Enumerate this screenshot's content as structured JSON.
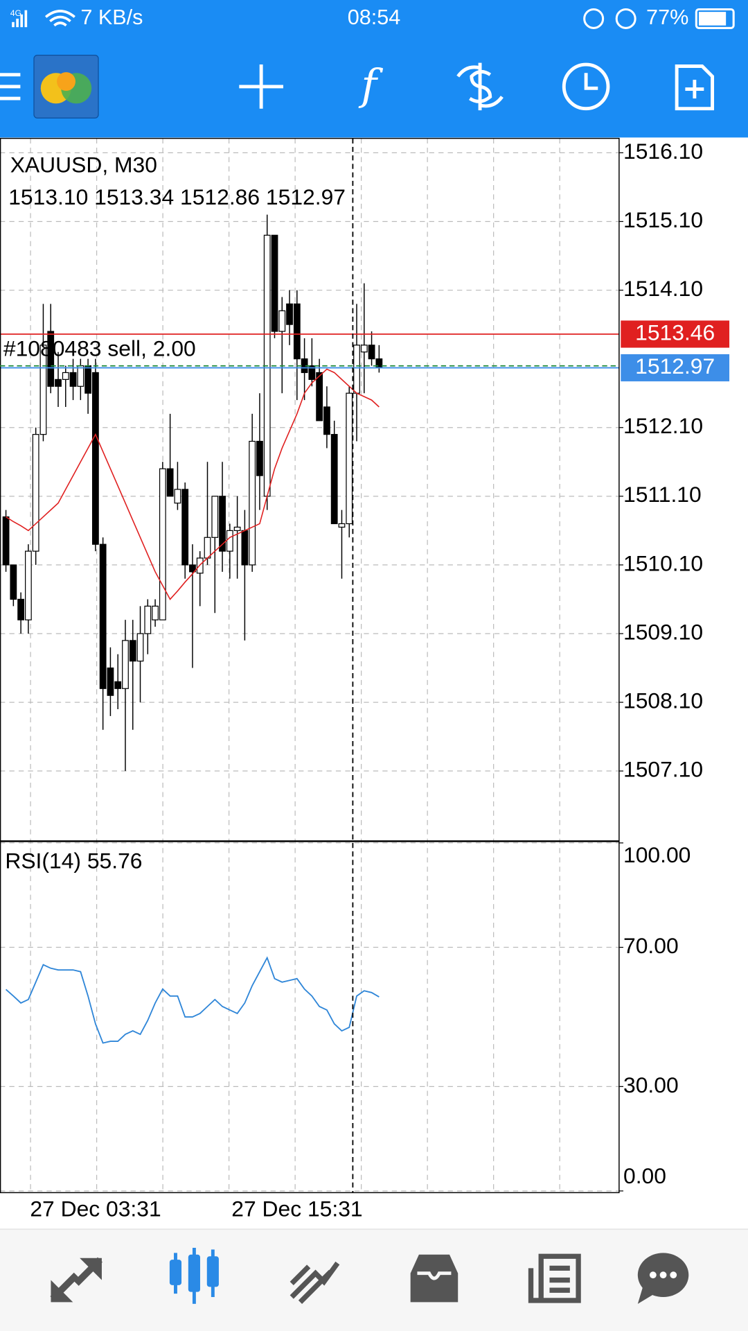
{
  "status_bar": {
    "network": "4G",
    "speed": "7 KB/s",
    "time": "08:54",
    "battery": "77%"
  },
  "chart_data": [
    {
      "type": "candlestick",
      "title": "XAUUSD, M30",
      "subtitle": "1513.10 1513.34 1512.86 1512.97",
      "categories": [
        null,
        null,
        null,
        "27 Dec 03:31",
        null,
        null,
        null,
        null,
        null,
        null,
        null,
        null,
        null,
        null,
        null,
        null,
        null,
        null,
        null,
        null,
        null,
        null,
        null,
        null,
        null,
        null,
        null,
        null,
        null,
        null,
        "27 Dec 15:31",
        null,
        null,
        null,
        null,
        null,
        null,
        null,
        null,
        null,
        null,
        null,
        null,
        null,
        null,
        null,
        null,
        null,
        null,
        null,
        null
      ],
      "open": [
        1510.8,
        1510.1,
        1509.6,
        1509.3,
        1510.3,
        1512.0,
        1513.5,
        1512.8,
        1512.8,
        1512.9,
        1512.7,
        1513.0,
        1512.9,
        1510.4,
        1508.6,
        1508.4,
        1508.3,
        1509.0,
        1508.7,
        1509.1,
        1509.3,
        1509.3,
        1511.5,
        1511.0,
        1511.2,
        1510.1,
        1509.98,
        1510.2,
        1510.5,
        1511.1,
        1510.3,
        1510.6,
        1510.6,
        1510.1,
        1511.9,
        1511.1,
        1514.9,
        1513.5,
        1513.9,
        1513.9,
        1513.1,
        1513.0,
        1512.9,
        1512.4,
        1512.0,
        1510.65,
        1510.7,
        1512.6,
        1513.2,
        1513.3,
        1513.1
      ],
      "high": [
        1510.9,
        1510.1,
        1509.7,
        1510.4,
        1512.1,
        1513.9,
        1513.9,
        1513.2,
        1513.0,
        1513.1,
        1513.1,
        1513.1,
        1513.1,
        1510.5,
        1508.9,
        1508.8,
        1509.3,
        1509.3,
        1509.5,
        1509.6,
        1509.6,
        1511.6,
        1512.3,
        1511.6,
        1511.3,
        1510.4,
        1510.3,
        1511.6,
        1511.1,
        1511.6,
        1510.7,
        1511.1,
        1510.9,
        1512.3,
        1512.6,
        1515.2,
        1514.9,
        1514.0,
        1514.1,
        1514.1,
        1513.4,
        1513.4,
        1513.1,
        1512.7,
        1512.2,
        1510.9,
        1512.7,
        1513.9,
        1514.2,
        1513.5,
        1513.3
      ],
      "low": [
        1510.0,
        1509.5,
        1509.1,
        1509.1,
        1510.1,
        1511.9,
        1512.6,
        1512.4,
        1512.4,
        1512.5,
        1512.5,
        1512.3,
        1510.3,
        1507.7,
        1507.9,
        1508.0,
        1507.1,
        1507.7,
        1508.1,
        1508.8,
        1509.2,
        1509.3,
        1511.1,
        1510.9,
        1509.9,
        1508.6,
        1509.5,
        1510.1,
        1509.4,
        1510.0,
        1509.9,
        1509.9,
        1509.0,
        1510.0,
        1510.9,
        1510.9,
        1513.4,
        1512.6,
        1513.3,
        1512.5,
        1512.5,
        1512.7,
        1512.2,
        1511.8,
        1510.7,
        1509.9,
        1510.5,
        1511.9,
        1512.6,
        1513.0,
        1512.9
      ],
      "close": [
        1510.1,
        1509.6,
        1509.3,
        1510.3,
        1512.0,
        1513.3,
        1512.7,
        1512.7,
        1512.9,
        1512.7,
        1513.0,
        1512.6,
        1510.4,
        1508.3,
        1508.2,
        1508.3,
        1509.0,
        1508.7,
        1509.1,
        1509.5,
        1509.5,
        1511.5,
        1511.1,
        1511.2,
        1510.1,
        1510.0,
        1510.2,
        1510.5,
        1511.1,
        1510.3,
        1510.6,
        1510.65,
        1510.1,
        1511.9,
        1511.4,
        1514.9,
        1513.5,
        1513.8,
        1513.6,
        1513.1,
        1512.9,
        1512.8,
        1512.2,
        1512.0,
        1510.7,
        1510.7,
        1512.6,
        1513.3,
        1513.3,
        1513.1,
        1512.97
      ],
      "ma": {
        "color": "#e02020",
        "values": [
          1510.8,
          1510.73,
          1510.67,
          1510.6,
          1510.7,
          1510.8,
          1510.9,
          1511.0,
          1511.2,
          1511.4,
          1511.6,
          1511.8,
          1512.0,
          1511.75,
          1511.5,
          1511.25,
          1511.0,
          1510.75,
          1510.5,
          1510.25,
          1510.0,
          1509.8,
          1509.6,
          1509.72,
          1509.85,
          1509.97,
          1510.1,
          1510.2,
          1510.3,
          1510.4,
          1510.5,
          1510.55,
          1510.6,
          1510.65,
          1510.7,
          1511.1,
          1511.5,
          1511.8,
          1512.05,
          1512.3,
          1512.6,
          1512.75,
          1512.85,
          1512.95,
          1512.9,
          1512.8,
          1512.7,
          1512.6,
          1512.55,
          1512.5,
          1512.4
        ]
      },
      "lines": [
        {
          "value": 1513.46,
          "color": "#e02020",
          "text": "#1080483 sell, 2.00"
        },
        {
          "value": 1512.97,
          "color": "#3d8ee8"
        }
      ],
      "ylim": [
        1506.09,
        1516.31
      ],
      "yticks": [
        {
          "value": 1516.1,
          "label": "1516.10"
        },
        {
          "value": 1515.1,
          "label": "1515.10"
        },
        {
          "value": 1514.1,
          "label": "1514.10"
        },
        {
          "value": 1512.1,
          "label": "1512.10"
        },
        {
          "value": 1511.1,
          "label": "1511.10"
        },
        {
          "value": 1510.1,
          "label": "1510.10"
        },
        {
          "value": 1509.1,
          "label": "1509.10"
        },
        {
          "value": 1508.1,
          "label": "1508.10"
        },
        {
          "value": 1507.1,
          "label": "1507.10"
        }
      ],
      "grid": true
    },
    {
      "type": "line",
      "title": "RSI(14) 55.76",
      "color": "#2f86d8",
      "values": [
        57.9,
        56,
        54,
        55,
        60,
        65,
        64,
        63.5,
        63.5,
        63.5,
        63,
        56,
        48,
        42.5,
        43,
        43,
        45,
        46,
        45,
        49,
        54,
        58,
        56,
        56,
        50,
        50,
        51,
        53,
        55,
        53,
        52,
        51,
        54,
        59,
        63,
        67,
        61,
        60,
        60.5,
        61,
        58,
        56,
        53,
        52,
        48,
        46,
        47,
        56,
        57.5,
        57,
        55.76
      ],
      "ylim": [
        0,
        100
      ],
      "yticks": [
        {
          "value": 100,
          "label": "100.00"
        },
        {
          "value": 70,
          "label": "70.00"
        },
        {
          "value": 30,
          "label": "30.00"
        },
        {
          "value": 0,
          "label": "0.00"
        }
      ],
      "grid": true
    }
  ]
}
